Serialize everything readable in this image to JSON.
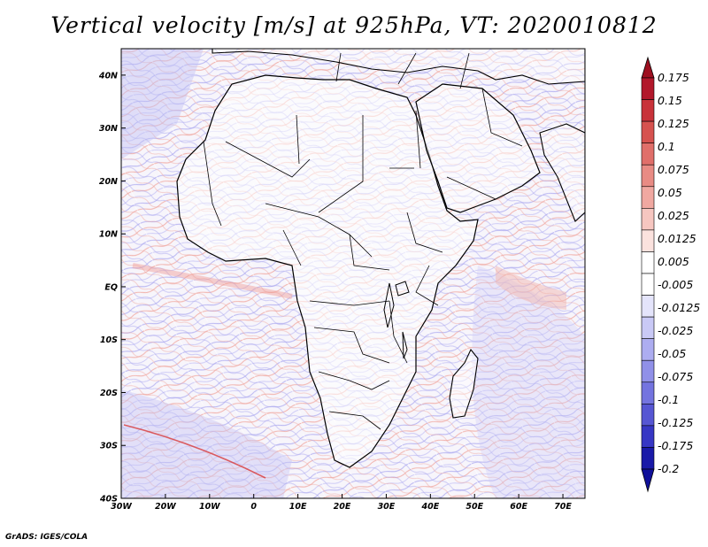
{
  "title": "Vertical velocity [m/s] at 925hPa, VT: 2020010812",
  "credit": "GrADS: IGES/COLA",
  "chart_data": {
    "type": "heatmap",
    "variable": "Vertical velocity",
    "units": "m/s",
    "level": "925hPa",
    "valid_time": "2020010812",
    "x_ticks": [
      "30W",
      "20W",
      "10W",
      "0",
      "10E",
      "20E",
      "30E",
      "40E",
      "50E",
      "60E",
      "70E"
    ],
    "x_values": [
      -30,
      -20,
      -10,
      0,
      10,
      20,
      30,
      40,
      50,
      60,
      70
    ],
    "y_ticks": [
      "40S",
      "30S",
      "20S",
      "10S",
      "EQ",
      "10N",
      "20N",
      "30N",
      "40N"
    ],
    "y_values": [
      -40,
      -30,
      -20,
      -10,
      0,
      10,
      20,
      30,
      40
    ],
    "lon_range": [
      -30,
      75
    ],
    "lat_range": [
      -40,
      45
    ],
    "colorbar_labels": [
      "0.175",
      "0.15",
      "0.125",
      "0.1",
      "0.075",
      "0.05",
      "0.025",
      "0.0125",
      "0.005",
      "-0.005",
      "-0.0125",
      "-0.025",
      "-0.05",
      "-0.075",
      "-0.1",
      "-0.125",
      "-0.175",
      "-0.2"
    ],
    "colorbar_colors": [
      "#b2182b",
      "#c8323a",
      "#d6524f",
      "#e06f6a",
      "#e88b84",
      "#f0a8a1",
      "#f6c6c0",
      "#fbe2de",
      "#ffffff",
      "#ffffff",
      "#e4e4fb",
      "#c9c9f6",
      "#adadf0",
      "#9090e8",
      "#7474df",
      "#5656d3",
      "#3737c4",
      "#1a1aa8"
    ],
    "colorbar_top_color": "#9e0f20",
    "colorbar_bottom_color": "#10109a"
  }
}
